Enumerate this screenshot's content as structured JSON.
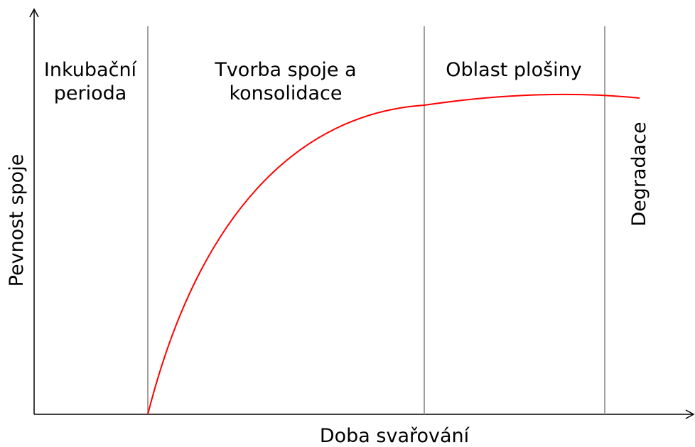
{
  "axes": {
    "x_label": "Doba svařování",
    "y_label": "Pevnost spoje"
  },
  "regions": [
    {
      "label_lines": [
        "Inkubační",
        "perioda"
      ]
    },
    {
      "label_lines": [
        "Tvorba spoje a",
        "konsolidace"
      ]
    },
    {
      "label_lines": [
        "Oblast plošiny"
      ]
    },
    {
      "label_lines": [
        "Degradace"
      ]
    }
  ]
}
